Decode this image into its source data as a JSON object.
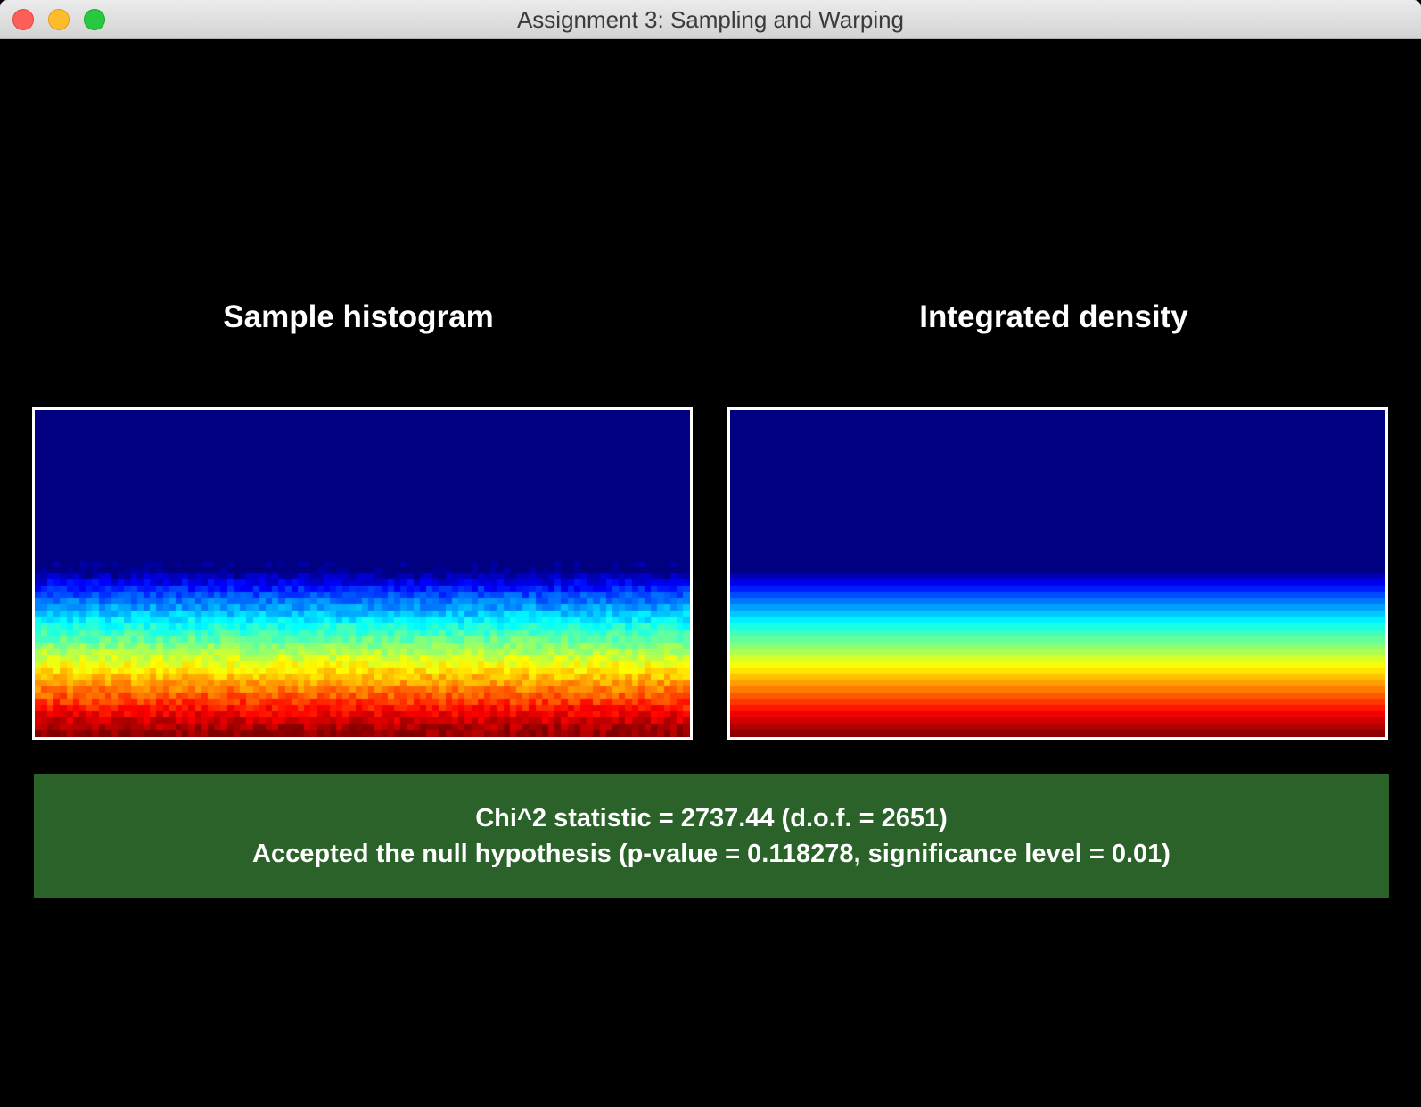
{
  "window": {
    "title": "Assignment 3: Sampling and Warping",
    "buttons": [
      "close",
      "minimize",
      "zoom"
    ]
  },
  "panels": {
    "left_title": "Sample histogram",
    "right_title": "Integrated density"
  },
  "heatmaps": {
    "colormap": "jet",
    "left_noisy": true,
    "right_noisy": false
  },
  "result": {
    "line1": "Chi^2 statistic = 2737.44 (d.o.f. = 2651)",
    "line2": "Accepted the null hypothesis (p-value = 0.118278, significance level = 0.01)",
    "background_color": "#2a6229",
    "passed": true
  }
}
